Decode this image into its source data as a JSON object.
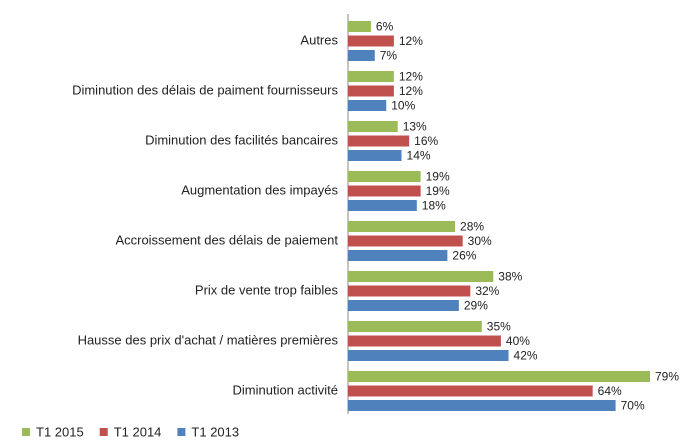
{
  "chart_data": {
    "type": "hbar",
    "categories": [
      "Autres",
      "Diminution des délais de paiment fournisseurs",
      "Diminution des facilités bancaires",
      "Augmentation des impayés",
      "Accroissement des délais de paiement",
      "Prix de vente trop faibles",
      "Hausse des prix d'achat / matières premières",
      "Diminution activité"
    ],
    "series": [
      {
        "name": "T1 2015",
        "color": "#9bbb59",
        "values": [
          6,
          12,
          13,
          19,
          28,
          38,
          35,
          79
        ],
        "value_labels": [
          "6%",
          "12%",
          "13%",
          "19%",
          "28%",
          "38%",
          "35%",
          "79%"
        ]
      },
      {
        "name": "T1 2014",
        "color": "#c0504d",
        "values": [
          12,
          12,
          16,
          19,
          30,
          32,
          40,
          64
        ],
        "value_labels": [
          "12%",
          "12%",
          "16%",
          "19%",
          "30%",
          "32%",
          "40%",
          "64%"
        ]
      },
      {
        "name": "T1 2013",
        "color": "#4f81bd",
        "values": [
          7,
          10,
          14,
          18,
          26,
          29,
          42,
          70
        ],
        "value_labels": [
          "7%",
          "10%",
          "14%",
          "18%",
          "26%",
          "29%",
          "42%",
          "70%"
        ]
      }
    ],
    "legend": "bottom"
  }
}
